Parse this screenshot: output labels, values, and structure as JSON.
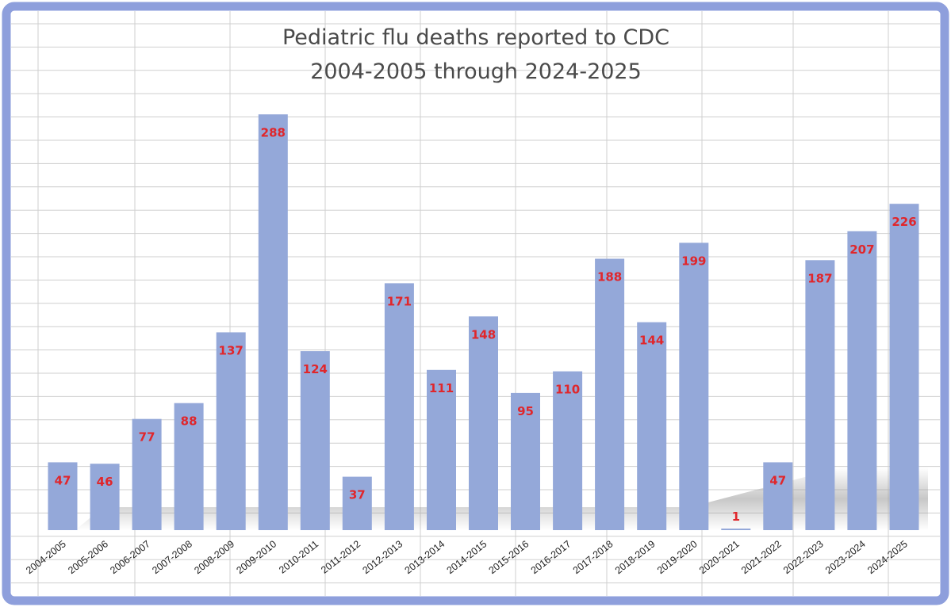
{
  "colors": {
    "bar": "#94a8d9",
    "value_label": "#e0262b",
    "frame": "#8e9fdc",
    "grid": "#cfcfcf",
    "title": "#4a4a4a"
  },
  "chart_data": {
    "type": "bar",
    "title": "Pediatric flu deaths reported to CDC",
    "subtitle": "2004-2005 through 2024-2025",
    "xlabel": "",
    "ylabel": "",
    "ylim": [
      0,
      300
    ],
    "grid": true,
    "legend": "none",
    "data_labels": true,
    "categories": [
      "2004-2005",
      "2005-2006",
      "2006-2007",
      "2007-2008",
      "2008-2009",
      "2009-2010",
      "2010-2011",
      "2011-2012",
      "2012-2013",
      "2013-2014",
      "2014-2015",
      "2015-2016",
      "2016-2017",
      "2017-2018",
      "2018-2019",
      "2019-2020",
      "2020-2021",
      "2021-2022",
      "2022-2023",
      "2023-2024",
      "2024-2025"
    ],
    "values": [
      47,
      46,
      77,
      88,
      137,
      288,
      124,
      37,
      171,
      111,
      148,
      95,
      110,
      188,
      144,
      199,
      1,
      47,
      187,
      207,
      226
    ]
  }
}
